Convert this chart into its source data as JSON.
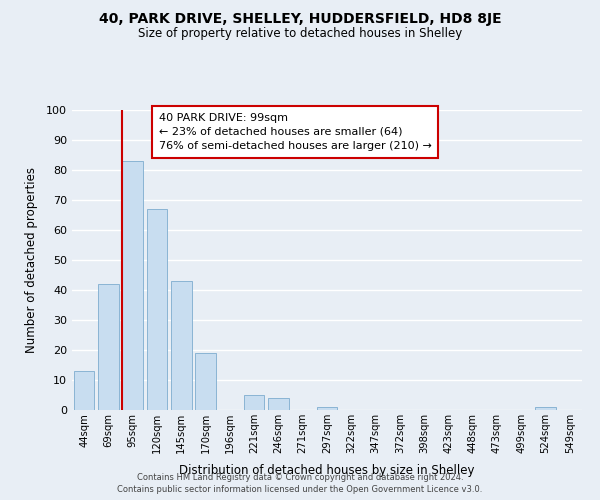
{
  "title": "40, PARK DRIVE, SHELLEY, HUDDERSFIELD, HD8 8JE",
  "subtitle": "Size of property relative to detached houses in Shelley",
  "xlabel": "Distribution of detached houses by size in Shelley",
  "ylabel": "Number of detached properties",
  "bar_color": "#c8ddf0",
  "bar_edge_color": "#8ab4d4",
  "categories": [
    "44sqm",
    "69sqm",
    "95sqm",
    "120sqm",
    "145sqm",
    "170sqm",
    "196sqm",
    "221sqm",
    "246sqm",
    "271sqm",
    "297sqm",
    "322sqm",
    "347sqm",
    "372sqm",
    "398sqm",
    "423sqm",
    "448sqm",
    "473sqm",
    "499sqm",
    "524sqm",
    "549sqm"
  ],
  "values": [
    13,
    42,
    83,
    67,
    43,
    19,
    0,
    5,
    4,
    0,
    1,
    0,
    0,
    0,
    0,
    0,
    0,
    0,
    0,
    1,
    0
  ],
  "ylim": [
    0,
    100
  ],
  "yticks": [
    0,
    10,
    20,
    30,
    40,
    50,
    60,
    70,
    80,
    90,
    100
  ],
  "vline_index": 2,
  "vline_color": "#cc0000",
  "annotation_title": "40 PARK DRIVE: 99sqm",
  "annotation_line1": "← 23% of detached houses are smaller (64)",
  "annotation_line2": "76% of semi-detached houses are larger (210) →",
  "annotation_box_color": "#ffffff",
  "annotation_box_edge": "#cc0000",
  "footer1": "Contains HM Land Registry data © Crown copyright and database right 2024.",
  "footer2": "Contains public sector information licensed under the Open Government Licence v3.0.",
  "background_color": "#e8eef5",
  "plot_bg_color": "#e8eef5",
  "grid_color": "#ffffff",
  "figsize": [
    6.0,
    5.0
  ],
  "dpi": 100
}
